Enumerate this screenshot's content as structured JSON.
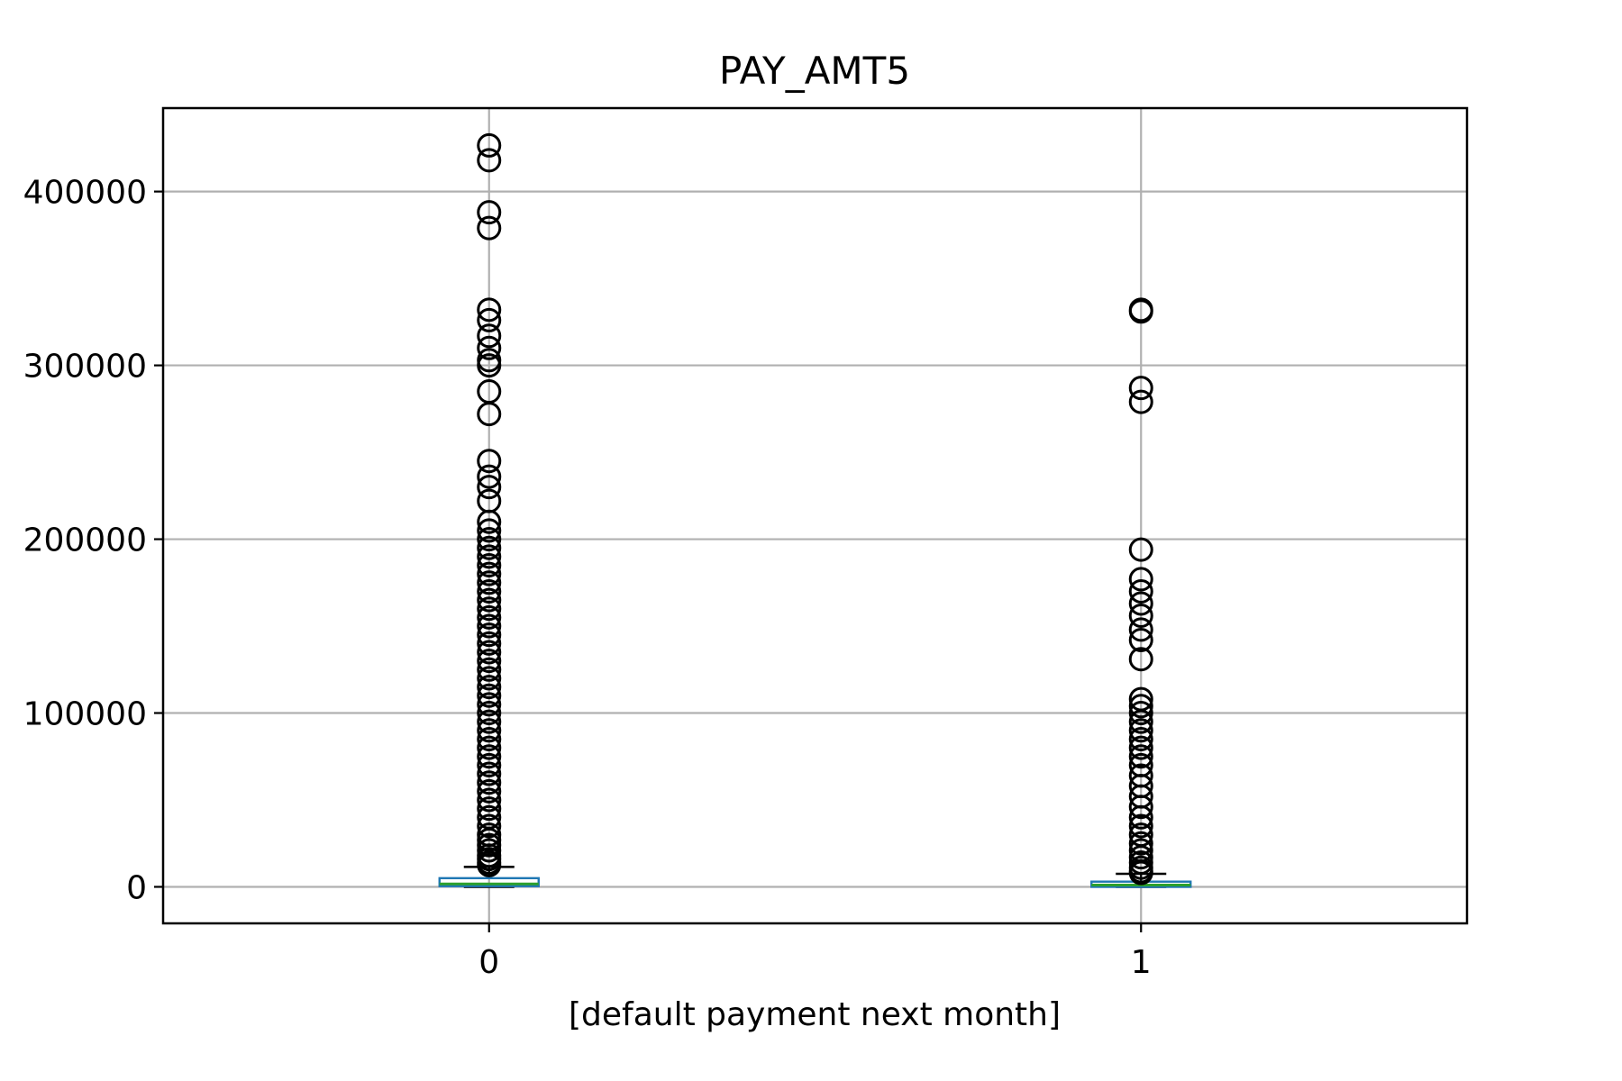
{
  "chart_data": {
    "type": "box",
    "title": "PAY_AMT5",
    "xlabel": "[default payment next month]",
    "ylabel": "",
    "categories": [
      "0",
      "1"
    ],
    "ylim": [
      -21000,
      448000
    ],
    "yticks": [
      0,
      100000,
      200000,
      300000,
      400000
    ],
    "ytick_labels": [
      "0",
      "100000",
      "200000",
      "300000",
      "400000"
    ],
    "grid": true,
    "colors": {
      "box": "#1f77b4",
      "median": "#2ca02c",
      "whisker": "#000000",
      "flier": "#000000",
      "grid": "#b0b0b0"
    },
    "boxes": [
      {
        "category": "0",
        "whisker_low": 0,
        "q1": 400,
        "median": 1700,
        "q3": 5000,
        "whisker_high": 11500,
        "fliers": [
          426529,
          418000,
          388071,
          379000,
          332000,
          326000,
          317000,
          310000,
          303000,
          300000,
          285000,
          272000,
          245000,
          236000,
          230000,
          222000,
          210000,
          205000,
          200000,
          195000,
          190000,
          185000,
          180000,
          175000,
          170000,
          165000,
          160000,
          155000,
          150000,
          145000,
          140000,
          135000,
          130000,
          125000,
          120000,
          115000,
          110000,
          105000,
          100000,
          95000,
          90000,
          85000,
          80000,
          75000,
          70000,
          65000,
          60000,
          55000,
          50000,
          45000,
          40000,
          35000,
          30000,
          27000,
          24000,
          21000,
          18000,
          16000,
          14000,
          12500
        ]
      },
      {
        "category": "1",
        "whisker_low": 0,
        "q1": 0,
        "median": 1000,
        "q3": 3000,
        "whisker_high": 7500,
        "fliers": [
          332000,
          331000,
          287000,
          279000,
          194000,
          177000,
          170000,
          163000,
          156000,
          148000,
          142000,
          131000,
          108000,
          104000,
          100000,
          95000,
          90000,
          85000,
          80000,
          75000,
          70000,
          64000,
          58000,
          52000,
          46000,
          40000,
          35000,
          30000,
          25000,
          21000,
          17000,
          14000,
          11000,
          9000,
          8000
        ]
      }
    ]
  }
}
